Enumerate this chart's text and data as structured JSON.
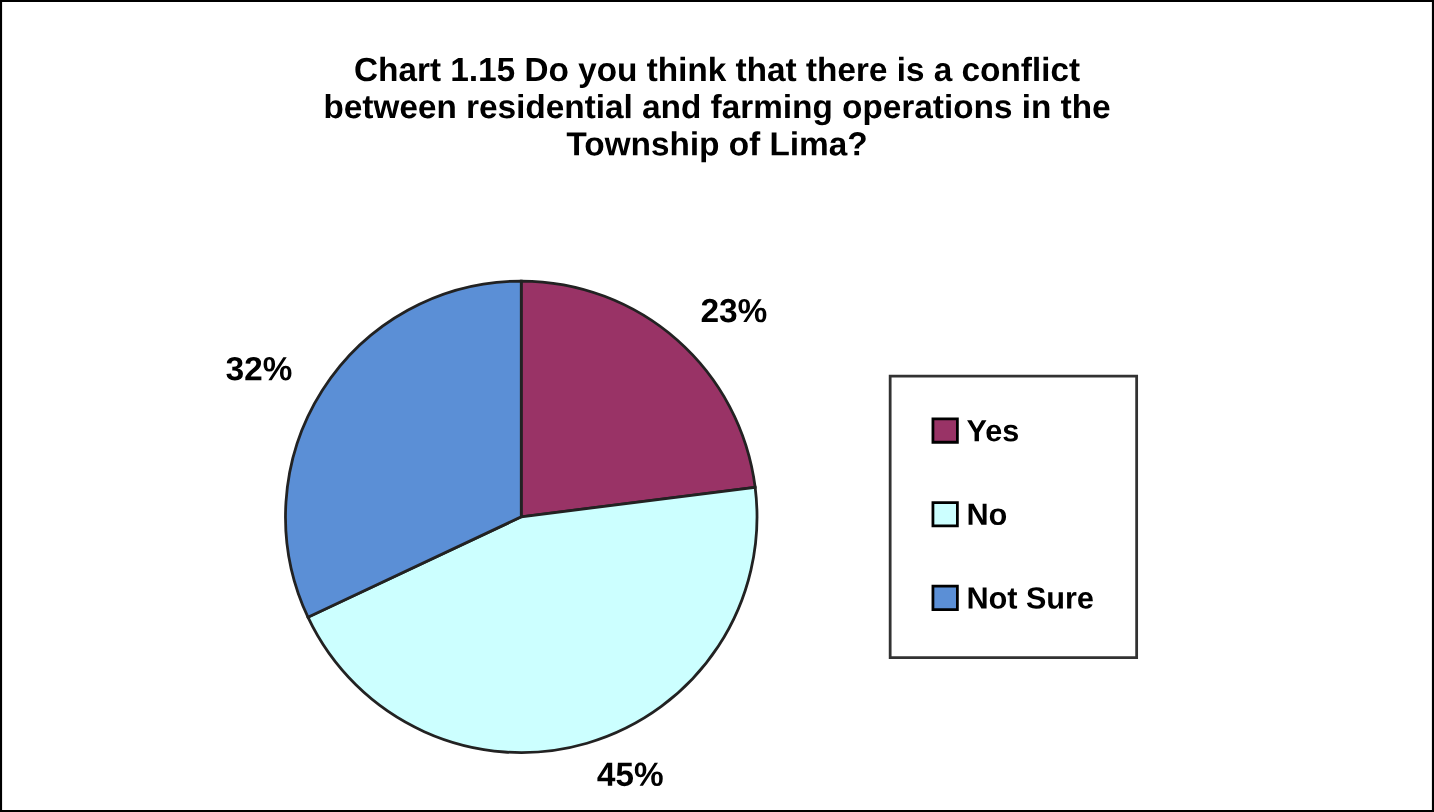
{
  "chart_data": {
    "type": "pie",
    "title": "Chart 1.15 Do you think that there is a conflict\nbetween residential and farming operations in the\nTownship of Lima?",
    "categories": [
      "Yes",
      "No",
      "Not Sure"
    ],
    "values": [
      23,
      45,
      32
    ],
    "colors": [
      "#993366",
      "#ccffff",
      "#5b8fd6"
    ],
    "value_labels": [
      "23%",
      "45%",
      "32%"
    ],
    "legend": "right"
  }
}
